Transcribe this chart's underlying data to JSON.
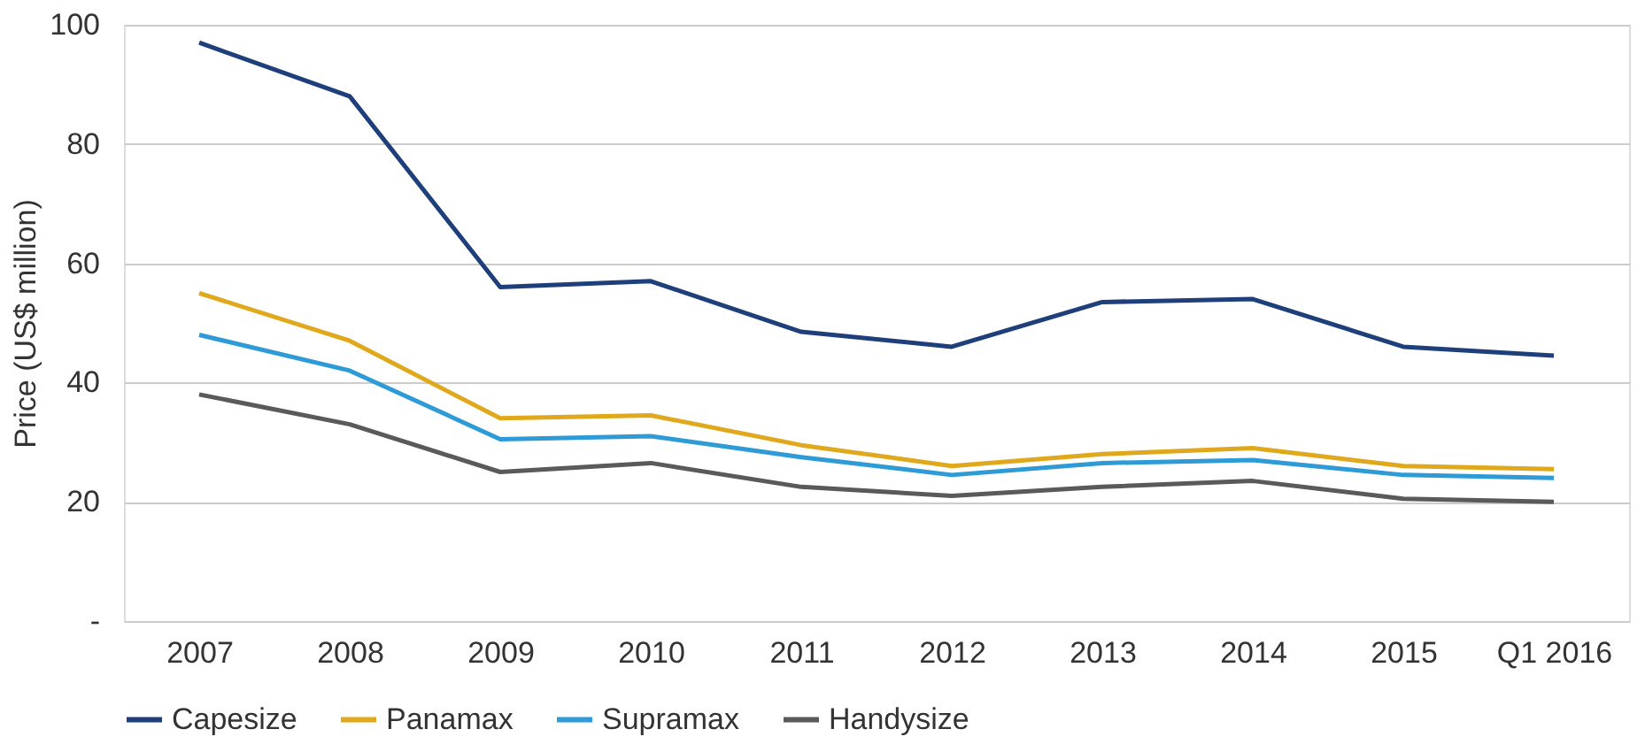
{
  "chart_data": {
    "type": "line",
    "ylabel": "Price (US$ million)",
    "categories": [
      "2007",
      "2008",
      "2009",
      "2010",
      "2011",
      "2012",
      "2013",
      "2014",
      "2015",
      "Q1 2016"
    ],
    "ylim": [
      0,
      100
    ],
    "yticks": [
      {
        "value": 0,
        "label": "-"
      },
      20,
      40,
      60,
      80,
      100
    ],
    "grid": "y",
    "legend": "bottom",
    "marker": "none",
    "line_style": "solid",
    "series": [
      {
        "name": "Capesize",
        "color": "#1f3f7a",
        "values": [
          97,
          88,
          56,
          57,
          48.5,
          46,
          53.5,
          54,
          46,
          44.5
        ]
      },
      {
        "name": "Panamax",
        "color": "#e0a81c",
        "values": [
          55,
          47,
          34,
          34.5,
          29.5,
          26,
          28,
          29,
          26,
          25.5
        ]
      },
      {
        "name": "Supramax",
        "color": "#2e9bd6",
        "values": [
          48,
          42,
          30.5,
          31,
          27.5,
          24.5,
          26.5,
          27,
          24.5,
          24
        ]
      },
      {
        "name": "Handysize",
        "color": "#5a5a5a",
        "values": [
          38,
          33,
          25,
          26.5,
          22.5,
          21,
          22.5,
          23.5,
          20.5,
          20
        ]
      }
    ]
  }
}
